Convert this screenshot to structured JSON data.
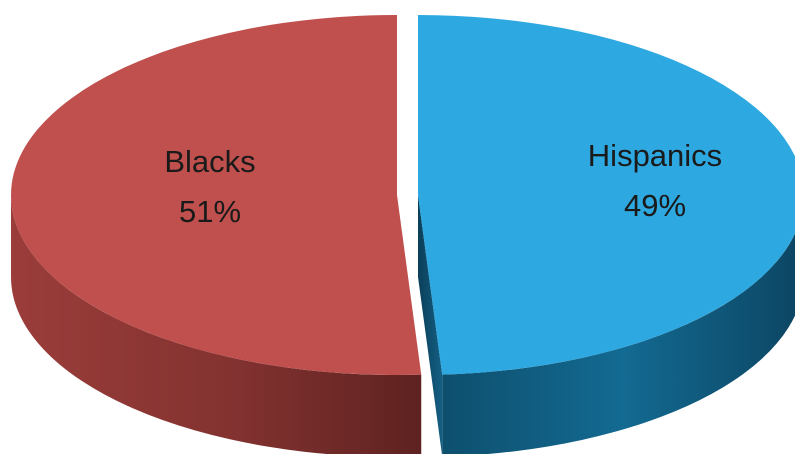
{
  "chart_data": {
    "type": "pie",
    "style": "3d-exploded",
    "slices": [
      {
        "label": "Blacks",
        "value": 51,
        "value_label": "51%",
        "color": "#c0504d",
        "side_color": "#7f2f2c"
      },
      {
        "label": "Hispanics",
        "value": 49,
        "value_label": "49%",
        "color": "#2ea8e0",
        "side_color": "#0f5a7e"
      }
    ],
    "title": "",
    "legend": "none"
  }
}
